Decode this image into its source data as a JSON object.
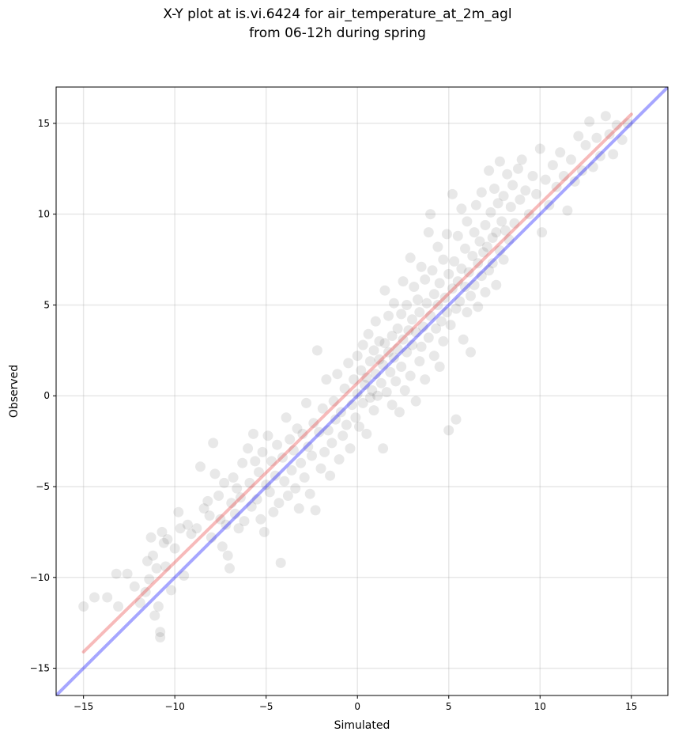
{
  "chart_data": {
    "type": "scatter",
    "title_lines": [
      "X-Y plot at is.vi.6424 for air_temperature_at_2m_agl",
      "from 06-12h during spring"
    ],
    "xlabel": "Simulated",
    "ylabel": "Observed",
    "xlim": [
      -16.5,
      17.0
    ],
    "ylim": [
      -16.5,
      17.0
    ],
    "xticks": [
      -15,
      -10,
      -5,
      0,
      5,
      10,
      15
    ],
    "yticks": [
      -15,
      -10,
      -5,
      0,
      5,
      10,
      15
    ],
    "xtick_labels": [
      "−15",
      "−10",
      "−5",
      "0",
      "5",
      "10",
      "15"
    ],
    "ytick_labels": [
      "−15",
      "−10",
      "−5",
      "0",
      "5",
      "10",
      "15"
    ],
    "grid": true,
    "point_color": "#000000",
    "point_alpha": 0.09,
    "lines": [
      {
        "kind": "one-to-one",
        "color": "#0000ff",
        "x": [
          -16.5,
          17.0
        ],
        "y": [
          -16.5,
          17.0
        ]
      },
      {
        "kind": "regression",
        "color": "#e8383a",
        "x": [
          -15,
          15
        ],
        "y": [
          -14.1,
          15.5
        ]
      }
    ],
    "points": [
      [
        -15.0,
        -11.6
      ],
      [
        -14.4,
        -11.1
      ],
      [
        -13.7,
        -11.1
      ],
      [
        -13.2,
        -9.8
      ],
      [
        -13.1,
        -11.6
      ],
      [
        -12.6,
        -9.8
      ],
      [
        -12.2,
        -10.5
      ],
      [
        -11.9,
        -11.4
      ],
      [
        -11.6,
        -10.8
      ],
      [
        -11.5,
        -9.1
      ],
      [
        -11.4,
        -10.1
      ],
      [
        -11.3,
        -7.8
      ],
      [
        -11.2,
        -8.8
      ],
      [
        -11.1,
        -12.1
      ],
      [
        -11.0,
        -9.5
      ],
      [
        -10.9,
        -11.6
      ],
      [
        -10.8,
        -13.0
      ],
      [
        -10.8,
        -13.3
      ],
      [
        -10.7,
        -7.5
      ],
      [
        -10.6,
        -8.1
      ],
      [
        -10.5,
        -9.4
      ],
      [
        -10.4,
        -7.9
      ],
      [
        -10.2,
        -10.7
      ],
      [
        -10.0,
        -8.4
      ],
      [
        -9.8,
        -6.4
      ],
      [
        -9.7,
        -7.3
      ],
      [
        -9.5,
        -9.9
      ],
      [
        -9.3,
        -7.1
      ],
      [
        -9.1,
        -7.6
      ],
      [
        -8.8,
        -7.3
      ],
      [
        -8.6,
        -3.9
      ],
      [
        -8.4,
        -6.2
      ],
      [
        -8.2,
        -5.8
      ],
      [
        -8.1,
        -6.6
      ],
      [
        -8.0,
        -7.8
      ],
      [
        -7.9,
        -2.6
      ],
      [
        -7.8,
        -4.3
      ],
      [
        -7.6,
        -5.5
      ],
      [
        -7.5,
        -6.8
      ],
      [
        -7.4,
        -8.3
      ],
      [
        -7.3,
        -4.8
      ],
      [
        -7.2,
        -7.1
      ],
      [
        -7.1,
        -8.8
      ],
      [
        -7.0,
        -9.5
      ],
      [
        -6.9,
        -5.9
      ],
      [
        -6.8,
        -4.5
      ],
      [
        -6.7,
        -6.5
      ],
      [
        -6.6,
        -5.1
      ],
      [
        -6.5,
        -7.3
      ],
      [
        -6.4,
        -5.6
      ],
      [
        -6.3,
        -3.7
      ],
      [
        -6.2,
        -6.9
      ],
      [
        -6.0,
        -2.9
      ],
      [
        -5.9,
        -4.8
      ],
      [
        -5.8,
        -6.1
      ],
      [
        -5.7,
        -2.1
      ],
      [
        -5.6,
        -3.6
      ],
      [
        -5.5,
        -5.7
      ],
      [
        -5.4,
        -4.2
      ],
      [
        -5.3,
        -6.8
      ],
      [
        -5.2,
        -3.1
      ],
      [
        -5.1,
        -7.5
      ],
      [
        -5.0,
        -4.9
      ],
      [
        -4.9,
        -2.2
      ],
      [
        -4.8,
        -5.3
      ],
      [
        -4.7,
        -3.6
      ],
      [
        -4.6,
        -6.4
      ],
      [
        -4.5,
        -4.4
      ],
      [
        -4.4,
        -2.7
      ],
      [
        -4.3,
        -5.9
      ],
      [
        -4.2,
        -9.2
      ],
      [
        -4.1,
        -3.4
      ],
      [
        -4.0,
        -4.7
      ],
      [
        -3.9,
        -1.2
      ],
      [
        -3.8,
        -5.5
      ],
      [
        -3.7,
        -2.4
      ],
      [
        -3.6,
        -4.1
      ],
      [
        -3.5,
        -3.0
      ],
      [
        -3.4,
        -5.1
      ],
      [
        -3.3,
        -1.8
      ],
      [
        -3.2,
        -6.2
      ],
      [
        -3.1,
        -3.7
      ],
      [
        -3.0,
        -2.1
      ],
      [
        -2.9,
        -4.5
      ],
      [
        -2.8,
        -0.4
      ],
      [
        -2.7,
        -2.8
      ],
      [
        -2.6,
        -5.4
      ],
      [
        -2.5,
        -3.3
      ],
      [
        -2.4,
        -1.5
      ],
      [
        -2.3,
        -6.3
      ],
      [
        -2.2,
        2.5
      ],
      [
        -2.1,
        -2.0
      ],
      [
        -2.0,
        -4.0
      ],
      [
        -1.9,
        -0.7
      ],
      [
        -1.8,
        -3.1
      ],
      [
        -1.7,
        0.9
      ],
      [
        -1.6,
        -1.9
      ],
      [
        -1.5,
        -4.4
      ],
      [
        -1.4,
        -2.6
      ],
      [
        -1.3,
        -0.3
      ],
      [
        -1.2,
        -1.3
      ],
      [
        -1.1,
        1.2
      ],
      [
        -1.0,
        -3.5
      ],
      [
        -0.9,
        -0.9
      ],
      [
        -0.8,
        -2.2
      ],
      [
        -0.7,
        0.4
      ],
      [
        -0.6,
        -1.6
      ],
      [
        -0.5,
        1.8
      ],
      [
        -0.4,
        -2.9
      ],
      [
        -0.3,
        -0.5
      ],
      [
        -0.2,
        0.9
      ],
      [
        -0.1,
        -1.2
      ],
      [
        0.0,
        2.2
      ],
      [
        0.0,
        0.1
      ],
      [
        0.1,
        -1.7
      ],
      [
        0.2,
        1.4
      ],
      [
        0.3,
        -0.4
      ],
      [
        0.3,
        2.8
      ],
      [
        0.4,
        0.6
      ],
      [
        0.5,
        -2.1
      ],
      [
        0.5,
        1.0
      ],
      [
        0.6,
        3.4
      ],
      [
        0.7,
        -0.1
      ],
      [
        0.7,
        1.9
      ],
      [
        0.8,
        0.3
      ],
      [
        0.9,
        2.5
      ],
      [
        0.9,
        -0.8
      ],
      [
        1.0,
        1.2
      ],
      [
        1.0,
        4.1
      ],
      [
        1.1,
        0.0
      ],
      [
        1.2,
        2.0
      ],
      [
        1.2,
        3.0
      ],
      [
        1.3,
        0.7
      ],
      [
        1.4,
        -2.9
      ],
      [
        1.4,
        1.7
      ],
      [
        1.5,
        5.8
      ],
      [
        1.5,
        2.9
      ],
      [
        1.6,
        0.2
      ],
      [
        1.7,
        2.4
      ],
      [
        1.7,
        4.4
      ],
      [
        1.8,
        1.3
      ],
      [
        1.9,
        3.3
      ],
      [
        1.9,
        -0.5
      ],
      [
        2.0,
        2.1
      ],
      [
        2.0,
        5.1
      ],
      [
        2.1,
        0.8
      ],
      [
        2.2,
        3.7
      ],
      [
        2.2,
        2.6
      ],
      [
        2.3,
        -0.9
      ],
      [
        2.4,
        4.5
      ],
      [
        2.4,
        1.6
      ],
      [
        2.5,
        3.1
      ],
      [
        2.5,
        6.3
      ],
      [
        2.6,
        0.3
      ],
      [
        2.7,
        2.4
      ],
      [
        2.7,
        5.0
      ],
      [
        2.8,
        3.6
      ],
      [
        2.9,
        7.6
      ],
      [
        2.9,
        1.1
      ],
      [
        3.0,
        4.2
      ],
      [
        3.0,
        2.8
      ],
      [
        3.1,
        6.0
      ],
      [
        3.2,
        -0.3
      ],
      [
        3.2,
        3.5
      ],
      [
        3.3,
        5.3
      ],
      [
        3.4,
        1.9
      ],
      [
        3.4,
        4.6
      ],
      [
        3.5,
        7.1
      ],
      [
        3.5,
        2.7
      ],
      [
        3.6,
        3.8
      ],
      [
        3.7,
        6.4
      ],
      [
        3.7,
        0.9
      ],
      [
        3.8,
        5.1
      ],
      [
        3.9,
        9.0
      ],
      [
        3.9,
        3.2
      ],
      [
        4.0,
        10.0
      ],
      [
        4.0,
        4.4
      ],
      [
        4.1,
        6.9
      ],
      [
        4.2,
        2.2
      ],
      [
        4.2,
        5.6
      ],
      [
        4.3,
        3.7
      ],
      [
        4.4,
        8.2
      ],
      [
        4.4,
        5.0
      ],
      [
        4.5,
        1.6
      ],
      [
        4.5,
        6.2
      ],
      [
        4.6,
        4.1
      ],
      [
        4.7,
        7.5
      ],
      [
        4.7,
        3.0
      ],
      [
        4.8,
        5.4
      ],
      [
        4.9,
        8.9
      ],
      [
        4.9,
        4.6
      ],
      [
        5.0,
        6.7
      ],
      [
        5.0,
        -1.9
      ],
      [
        5.1,
        3.9
      ],
      [
        5.2,
        5.9
      ],
      [
        5.2,
        11.1
      ],
      [
        5.3,
        7.4
      ],
      [
        5.4,
        4.8
      ],
      [
        5.4,
        -1.3
      ],
      [
        5.5,
        6.3
      ],
      [
        5.5,
        8.8
      ],
      [
        5.6,
        5.2
      ],
      [
        5.7,
        10.3
      ],
      [
        5.7,
        7.0
      ],
      [
        5.8,
        3.1
      ],
      [
        5.9,
        6.0
      ],
      [
        5.9,
        8.1
      ],
      [
        6.0,
        4.6
      ],
      [
        6.0,
        9.6
      ],
      [
        6.1,
        6.8
      ],
      [
        6.2,
        5.5
      ],
      [
        6.2,
        2.4
      ],
      [
        6.3,
        7.7
      ],
      [
        6.4,
        9.0
      ],
      [
        6.4,
        6.1
      ],
      [
        6.5,
        10.5
      ],
      [
        6.6,
        7.3
      ],
      [
        6.6,
        4.9
      ],
      [
        6.7,
        8.5
      ],
      [
        6.8,
        6.6
      ],
      [
        6.8,
        11.2
      ],
      [
        6.9,
        7.9
      ],
      [
        7.0,
        9.4
      ],
      [
        7.0,
        5.7
      ],
      [
        7.1,
        8.2
      ],
      [
        7.2,
        12.4
      ],
      [
        7.2,
        6.9
      ],
      [
        7.3,
        10.1
      ],
      [
        7.4,
        8.7
      ],
      [
        7.4,
        7.3
      ],
      [
        7.5,
        11.4
      ],
      [
        7.6,
        9.0
      ],
      [
        7.6,
        6.1
      ],
      [
        7.7,
        10.6
      ],
      [
        7.8,
        8.0
      ],
      [
        7.8,
        12.9
      ],
      [
        7.9,
        9.6
      ],
      [
        8.0,
        7.5
      ],
      [
        8.0,
        11.0
      ],
      [
        8.1,
        9.1
      ],
      [
        8.2,
        12.2
      ],
      [
        8.3,
        8.6
      ],
      [
        8.4,
        10.4
      ],
      [
        8.5,
        11.6
      ],
      [
        8.6,
        9.5
      ],
      [
        8.8,
        12.5
      ],
      [
        8.9,
        10.8
      ],
      [
        9.0,
        13.0
      ],
      [
        9.2,
        11.3
      ],
      [
        9.4,
        10.0
      ],
      [
        9.6,
        12.1
      ],
      [
        9.8,
        11.1
      ],
      [
        10.0,
        13.6
      ],
      [
        10.1,
        9.0
      ],
      [
        10.3,
        11.9
      ],
      [
        10.5,
        10.5
      ],
      [
        10.7,
        12.7
      ],
      [
        10.9,
        11.5
      ],
      [
        11.1,
        13.4
      ],
      [
        11.3,
        12.1
      ],
      [
        11.5,
        10.2
      ],
      [
        11.7,
        13.0
      ],
      [
        11.9,
        11.8
      ],
      [
        12.1,
        14.3
      ],
      [
        12.3,
        12.4
      ],
      [
        12.5,
        13.8
      ],
      [
        12.7,
        15.1
      ],
      [
        12.9,
        12.6
      ],
      [
        13.1,
        14.2
      ],
      [
        13.3,
        13.2
      ],
      [
        13.6,
        15.4
      ],
      [
        13.8,
        14.4
      ],
      [
        14.0,
        13.3
      ],
      [
        14.2,
        14.9
      ],
      [
        14.5,
        14.1
      ],
      [
        14.8,
        15.0
      ]
    ]
  }
}
